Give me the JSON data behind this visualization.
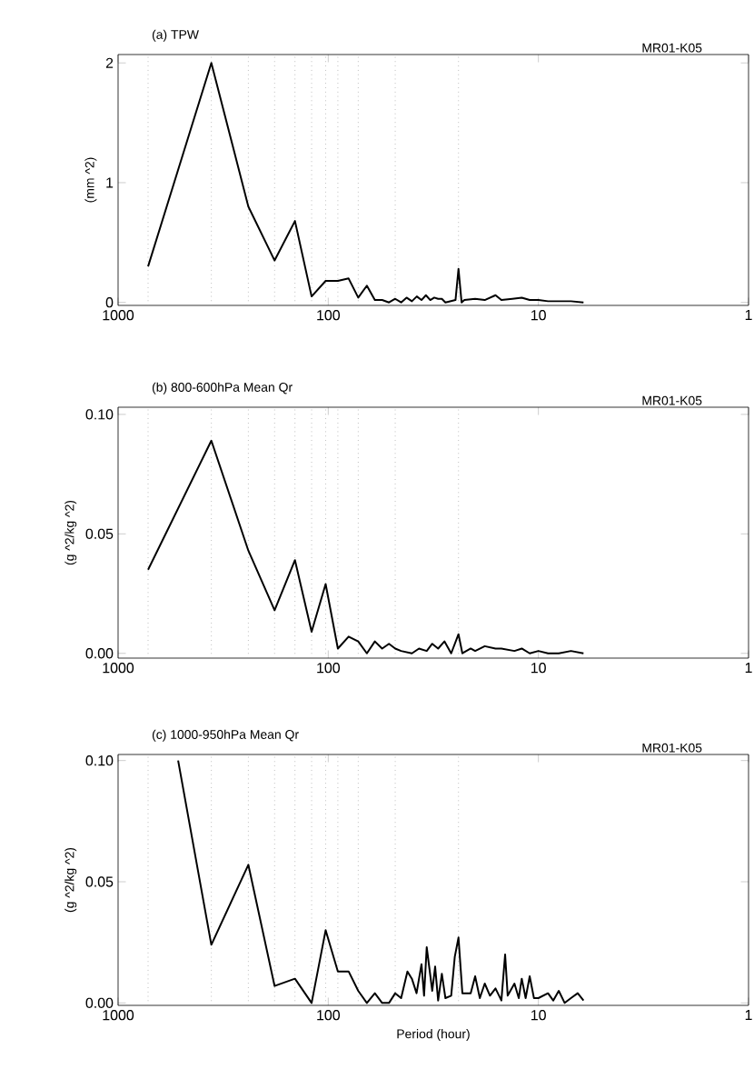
{
  "chart_data": [
    {
      "type": "line",
      "title": "(a) TPW",
      "ylabel": "(mm ^2)",
      "annotations": [
        "MR01-K05"
      ],
      "log": "x",
      "xlim": [
        1000,
        1
      ],
      "xticks": [
        1000,
        100,
        10,
        1
      ],
      "ylim": [
        -0.025,
        2.07
      ],
      "yticks": [
        0,
        1,
        2
      ],
      "marker": "none",
      "line_style": "solid",
      "ref_lines": [
        {
          "axis": "x",
          "value": 720,
          "line_style": "dotted",
          "color": "#999999"
        },
        {
          "axis": "x",
          "value": 360,
          "line_style": "dotted",
          "color": "#999999"
        },
        {
          "axis": "x",
          "value": 240,
          "line_style": "dotted",
          "color": "#999999"
        },
        {
          "axis": "x",
          "value": 180,
          "line_style": "dotted",
          "color": "#999999"
        },
        {
          "axis": "x",
          "value": 144,
          "line_style": "dotted",
          "color": "#999999"
        },
        {
          "axis": "x",
          "value": 120,
          "line_style": "dotted",
          "color": "#999999"
        },
        {
          "axis": "x",
          "value": 102.9,
          "line_style": "dotted",
          "color": "#999999"
        },
        {
          "axis": "x",
          "value": 90,
          "line_style": "dotted",
          "color": "#999999"
        },
        {
          "axis": "x",
          "value": 72,
          "line_style": "dotted",
          "color": "#999999"
        },
        {
          "axis": "x",
          "value": 48,
          "line_style": "dotted",
          "color": "#999999"
        },
        {
          "axis": "x",
          "value": 24,
          "line_style": "dotted",
          "color": "#999999"
        }
      ],
      "series": [
        {
          "color": "#000000",
          "x": [
            720,
            360,
            240,
            180,
            144,
            120,
            102.9,
            90,
            80,
            72,
            65.5,
            60,
            55.4,
            51.4,
            48,
            45,
            42.4,
            40,
            37.9,
            36,
            34.3,
            32.7,
            31.3,
            30,
            28.8,
            27.7,
            24.8,
            24,
            23.2,
            22.5,
            20,
            18,
            16,
            15,
            13.3,
            12,
            11,
            10,
            9,
            8,
            7,
            6.1
          ],
          "values": [
            0.3,
            2.0,
            0.8,
            0.35,
            0.68,
            0.05,
            0.18,
            0.18,
            0.2,
            0.04,
            0.14,
            0.02,
            0.02,
            0.0,
            0.03,
            0.0,
            0.04,
            0.01,
            0.05,
            0.02,
            0.06,
            0.02,
            0.04,
            0.03,
            0.03,
            0.0,
            0.02,
            0.28,
            0.0,
            0.02,
            0.03,
            0.02,
            0.06,
            0.02,
            0.03,
            0.04,
            0.02,
            0.02,
            0.01,
            0.01,
            0.01,
            0.0
          ]
        }
      ]
    },
    {
      "type": "line",
      "title": "(b) 800-600hPa Mean Qr",
      "ylabel": "(g ^2/kg ^2)",
      "annotations": [
        "MR01-K05"
      ],
      "log": "x",
      "xlim": [
        1000,
        1
      ],
      "xticks": [
        1000,
        100,
        10,
        1
      ],
      "ylim": [
        -0.002,
        0.103
      ],
      "yticks": [
        {
          "value": 0,
          "label": "0.00"
        },
        {
          "value": 0.05,
          "label": "0.05"
        },
        {
          "value": 0.1,
          "label": "0.10"
        }
      ],
      "marker": "none",
      "line_style": "solid",
      "ref_lines": [
        {
          "axis": "x",
          "value": 720,
          "line_style": "dotted",
          "color": "#999999"
        },
        {
          "axis": "x",
          "value": 360,
          "line_style": "dotted",
          "color": "#999999"
        },
        {
          "axis": "x",
          "value": 240,
          "line_style": "dotted",
          "color": "#999999"
        },
        {
          "axis": "x",
          "value": 180,
          "line_style": "dotted",
          "color": "#999999"
        },
        {
          "axis": "x",
          "value": 144,
          "line_style": "dotted",
          "color": "#999999"
        },
        {
          "axis": "x",
          "value": 120,
          "line_style": "dotted",
          "color": "#999999"
        },
        {
          "axis": "x",
          "value": 102.9,
          "line_style": "dotted",
          "color": "#999999"
        },
        {
          "axis": "x",
          "value": 90,
          "line_style": "dotted",
          "color": "#999999"
        },
        {
          "axis": "x",
          "value": 72,
          "line_style": "dotted",
          "color": "#999999"
        },
        {
          "axis": "x",
          "value": 48,
          "line_style": "dotted",
          "color": "#999999"
        },
        {
          "axis": "x",
          "value": 24,
          "line_style": "dotted",
          "color": "#999999"
        }
      ],
      "series": [
        {
          "color": "#000000",
          "x": [
            720,
            360,
            240,
            180,
            144,
            120,
            102.9,
            90,
            80,
            72,
            65.5,
            60,
            55.4,
            51.4,
            48,
            45,
            40,
            37,
            34,
            32,
            30,
            28,
            26,
            24,
            23,
            21,
            20,
            18,
            16,
            15,
            13,
            12,
            11,
            10,
            9,
            8,
            7,
            6.1
          ],
          "values": [
            0.035,
            0.089,
            0.043,
            0.018,
            0.039,
            0.009,
            0.029,
            0.002,
            0.007,
            0.005,
            0.0,
            0.005,
            0.002,
            0.004,
            0.002,
            0.001,
            0.0,
            0.002,
            0.001,
            0.004,
            0.002,
            0.005,
            0.0,
            0.008,
            0.0,
            0.002,
            0.001,
            0.003,
            0.002,
            0.002,
            0.001,
            0.002,
            0.0,
            0.001,
            0.0,
            0.0,
            0.001,
            0.0
          ]
        }
      ]
    },
    {
      "type": "line",
      "title": "(c) 1000-950hPa Mean Qr",
      "xlabel": "Period (hour)",
      "ylabel": "(g ^2/kg ^2)",
      "annotations": [
        "MR01-K05"
      ],
      "log": "x",
      "xlim": [
        1000,
        1
      ],
      "xticks": [
        1000,
        100,
        10,
        1
      ],
      "ylim": [
        -0.001,
        0.1025
      ],
      "yticks": [
        {
          "value": 0,
          "label": "0.00"
        },
        {
          "value": 0.05,
          "label": "0.05"
        },
        {
          "value": 0.1,
          "label": "0.10"
        }
      ],
      "marker": "none",
      "line_style": "solid",
      "ref_lines": [
        {
          "axis": "x",
          "value": 720,
          "line_style": "dotted",
          "color": "#999999"
        },
        {
          "axis": "x",
          "value": 360,
          "line_style": "dotted",
          "color": "#999999"
        },
        {
          "axis": "x",
          "value": 240,
          "line_style": "dotted",
          "color": "#999999"
        },
        {
          "axis": "x",
          "value": 180,
          "line_style": "dotted",
          "color": "#999999"
        },
        {
          "axis": "x",
          "value": 144,
          "line_style": "dotted",
          "color": "#999999"
        },
        {
          "axis": "x",
          "value": 120,
          "line_style": "dotted",
          "color": "#999999"
        },
        {
          "axis": "x",
          "value": 102.9,
          "line_style": "dotted",
          "color": "#999999"
        },
        {
          "axis": "x",
          "value": 90,
          "line_style": "dotted",
          "color": "#999999"
        },
        {
          "axis": "x",
          "value": 72,
          "line_style": "dotted",
          "color": "#999999"
        },
        {
          "axis": "x",
          "value": 48,
          "line_style": "dotted",
          "color": "#999999"
        },
        {
          "axis": "x",
          "value": 24,
          "line_style": "dotted",
          "color": "#999999"
        }
      ],
      "series": [
        {
          "color": "#000000",
          "x": [
            518,
            360,
            240,
            180,
            144,
            120,
            102.9,
            90,
            80,
            72,
            65.5,
            60,
            55.4,
            51.4,
            48,
            45,
            42,
            40,
            38,
            36,
            35,
            34,
            32,
            31,
            30,
            28.8,
            27.7,
            26,
            25,
            24,
            23,
            21,
            20,
            19,
            18,
            17,
            16,
            15,
            14.4,
            14,
            13,
            12.4,
            12,
            11.5,
            11,
            10.5,
            10,
            9,
            8.5,
            8,
            7.5,
            7,
            6.5,
            6.1
          ],
          "values": [
            0.1,
            0.024,
            0.057,
            0.007,
            0.01,
            0.0,
            0.03,
            0.013,
            0.013,
            0.005,
            0.0,
            0.004,
            0.0,
            0.0,
            0.004,
            0.002,
            0.013,
            0.01,
            0.004,
            0.016,
            0.003,
            0.023,
            0.005,
            0.015,
            0.001,
            0.012,
            0.002,
            0.003,
            0.019,
            0.027,
            0.004,
            0.004,
            0.011,
            0.002,
            0.008,
            0.003,
            0.006,
            0.001,
            0.02,
            0.003,
            0.008,
            0.002,
            0.01,
            0.002,
            0.011,
            0.002,
            0.002,
            0.004,
            0.001,
            0.005,
            0.0,
            0.002,
            0.004,
            0.001
          ]
        }
      ]
    }
  ]
}
